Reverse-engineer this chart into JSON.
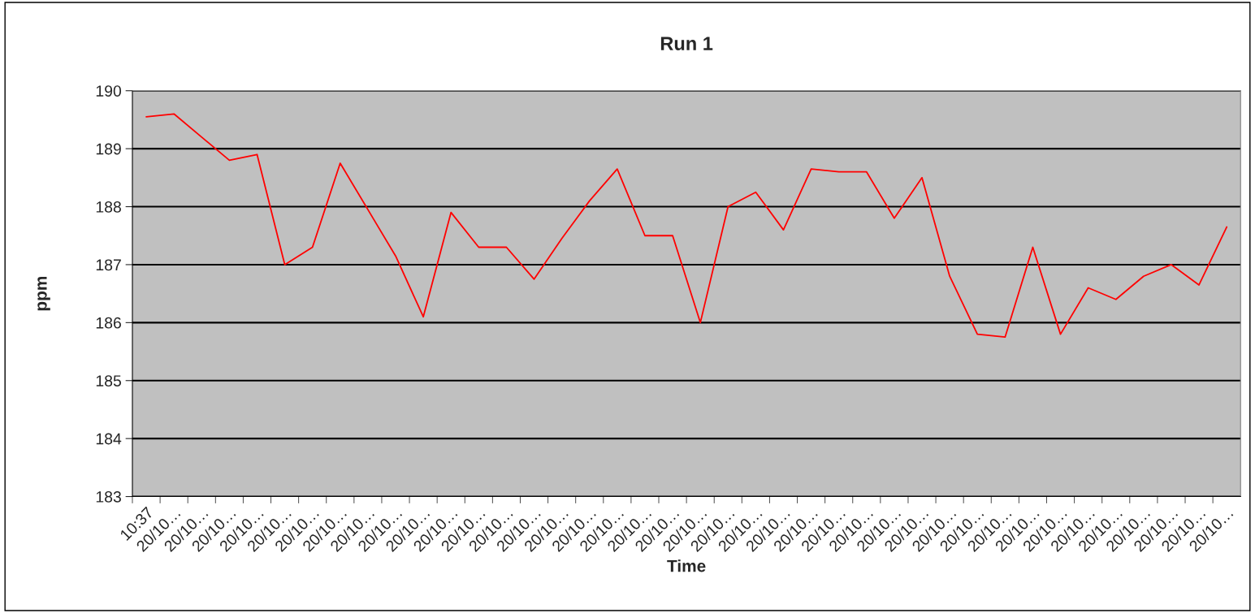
{
  "chart_data": {
    "type": "line",
    "title": "Run 1",
    "xlabel": "Time",
    "ylabel": "ppm",
    "categories": [
      "10:37",
      "20/10…",
      "20/10…",
      "20/10…",
      "20/10…",
      "20/10…",
      "20/10…",
      "20/10…",
      "20/10…",
      "20/10…",
      "20/10…",
      "20/10…",
      "20/10…",
      "20/10…",
      "20/10…",
      "20/10…",
      "20/10…",
      "20/10…",
      "20/10…",
      "20/10…",
      "20/10…",
      "20/10…",
      "20/10…",
      "20/10…",
      "20/10…",
      "20/10…",
      "20/10…",
      "20/10…",
      "20/10…",
      "20/10…",
      "20/10…",
      "20/10…",
      "20/10…",
      "20/10…",
      "20/10…",
      "20/10…",
      "20/10…",
      "20/10…",
      "20/10…",
      "20/10…"
    ],
    "series": [
      {
        "color": "#ff0000",
        "values": [
          189.55,
          189.6,
          189.2,
          188.8,
          188.9,
          187.0,
          187.3,
          188.75,
          187.95,
          187.15,
          186.1,
          187.9,
          187.3,
          187.3,
          186.75,
          187.45,
          188.1,
          188.65,
          187.5,
          187.5,
          186.0,
          188.0,
          188.25,
          187.6,
          188.65,
          188.6,
          188.6,
          187.8,
          188.5,
          186.8,
          185.8,
          185.75,
          187.3,
          185.8,
          186.6,
          186.4,
          186.8,
          187.0,
          186.65,
          187.65
        ]
      }
    ],
    "ylim": [
      183,
      190
    ],
    "yticks": [
      183,
      184,
      185,
      186,
      187,
      188,
      189,
      190
    ],
    "grid": "y"
  }
}
